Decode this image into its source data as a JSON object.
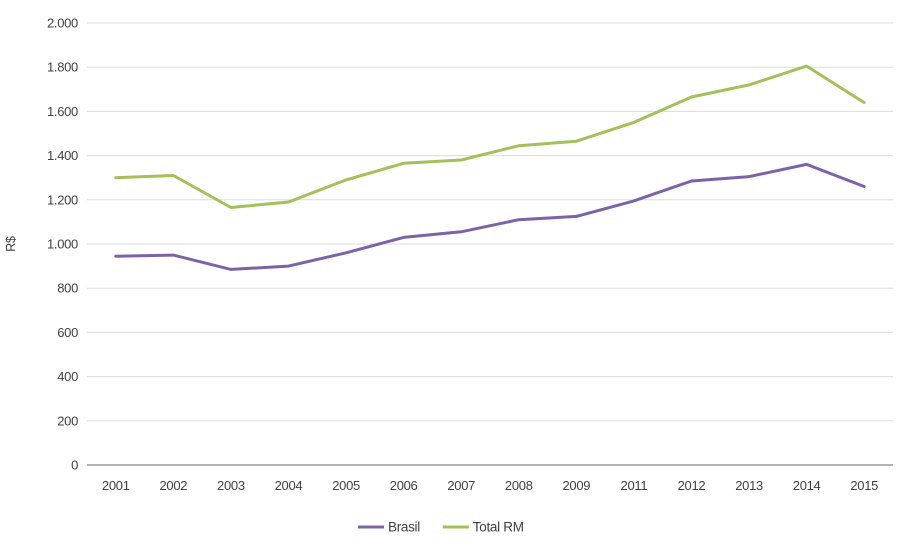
{
  "chart_data": {
    "type": "line",
    "title": "",
    "xlabel": "",
    "ylabel": "R$",
    "ylim": [
      0,
      2000
    ],
    "ytick_interval": 200,
    "ytick_labels": [
      "0",
      "200",
      "400",
      "600",
      "800",
      "1.000",
      "1.200",
      "1.400",
      "1.600",
      "1.800",
      "2.000"
    ],
    "grid": "horizontal",
    "legend_position": "bottom",
    "categories": [
      "2001",
      "2002",
      "2003",
      "2004",
      "2005",
      "2006",
      "2007",
      "2008",
      "2009",
      "2011",
      "2012",
      "2013",
      "2014",
      "2015"
    ],
    "series": [
      {
        "name": "Brasil",
        "color": "#7d63a6",
        "values": [
          945,
          950,
          885,
          900,
          960,
          1030,
          1055,
          1110,
          1125,
          1195,
          1285,
          1305,
          1360,
          1260
        ]
      },
      {
        "name": "Total RM",
        "color": "#a3c05a",
        "values": [
          1300,
          1310,
          1165,
          1190,
          1290,
          1365,
          1380,
          1445,
          1465,
          1550,
          1665,
          1720,
          1805,
          1640
        ]
      }
    ]
  },
  "colors": {
    "grid": "#dcdcdc",
    "axis": "#9c9c9c",
    "text": "#3f3f3f",
    "background": "#ffffff"
  }
}
